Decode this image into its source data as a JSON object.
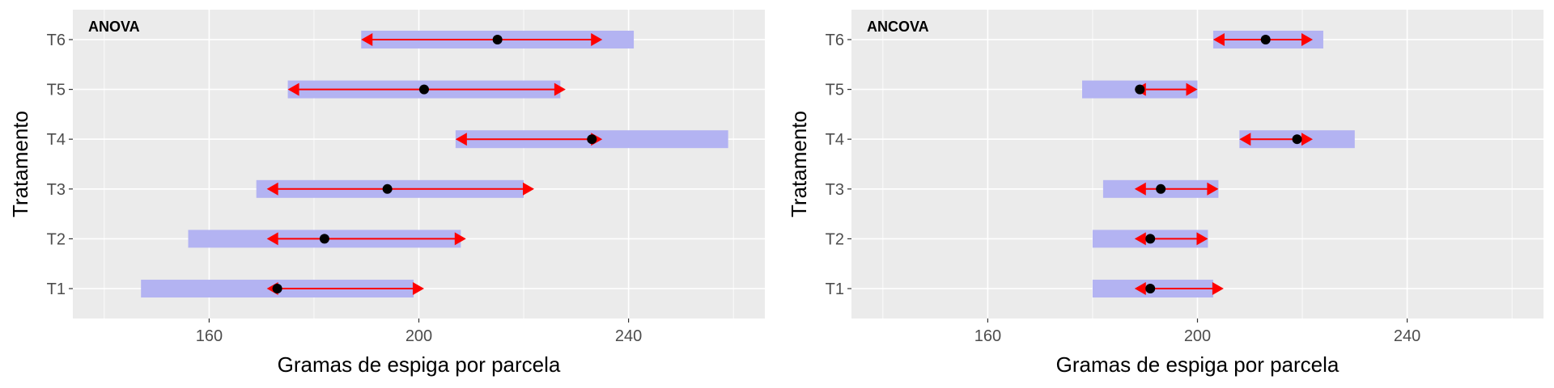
{
  "chart_data": [
    {
      "type": "interval",
      "tag": "ANOVA",
      "xlabel": "Gramas de espiga por parcela",
      "ylabel": "Tratamento",
      "categories": [
        "T1",
        "T2",
        "T3",
        "T4",
        "T5",
        "T6"
      ],
      "xlim": [
        134,
        266
      ],
      "xticks": [
        160,
        200,
        240
      ],
      "xtick_labels": [
        "160",
        "200",
        "240"
      ],
      "means": [
        173,
        182,
        194,
        233,
        201,
        215
      ],
      "bar_lower": [
        147,
        156,
        169,
        207,
        175,
        189
      ],
      "bar_upper": [
        199,
        208,
        220,
        259,
        227,
        241
      ],
      "arrow_lower": [
        171,
        171,
        171,
        207,
        175,
        189
      ],
      "arrow_upper": [
        201,
        209,
        222,
        235,
        228,
        235
      ],
      "colors": {
        "bar": "#b3b3f2",
        "arrow": "#ff0000",
        "point": "#000000"
      }
    },
    {
      "type": "interval",
      "tag": "ANCOVA",
      "xlabel": "Gramas de espiga por parcela",
      "ylabel": "Tratamento",
      "categories": [
        "T1",
        "T2",
        "T3",
        "T4",
        "T5",
        "T6"
      ],
      "xlim": [
        134,
        266
      ],
      "xticks": [
        160,
        200,
        240
      ],
      "xtick_labels": [
        "160",
        "200",
        "240"
      ],
      "means": [
        191,
        191,
        193,
        219,
        189,
        213
      ],
      "bar_lower": [
        180,
        180,
        182,
        208,
        178,
        203
      ],
      "bar_upper": [
        203,
        202,
        204,
        230,
        200,
        224
      ],
      "arrow_lower": [
        188,
        188,
        188,
        208,
        188,
        203
      ],
      "arrow_upper": [
        205,
        202,
        204,
        222,
        200,
        222
      ],
      "colors": {
        "bar": "#b3b3f2",
        "arrow": "#ff0000",
        "point": "#000000"
      }
    }
  ]
}
